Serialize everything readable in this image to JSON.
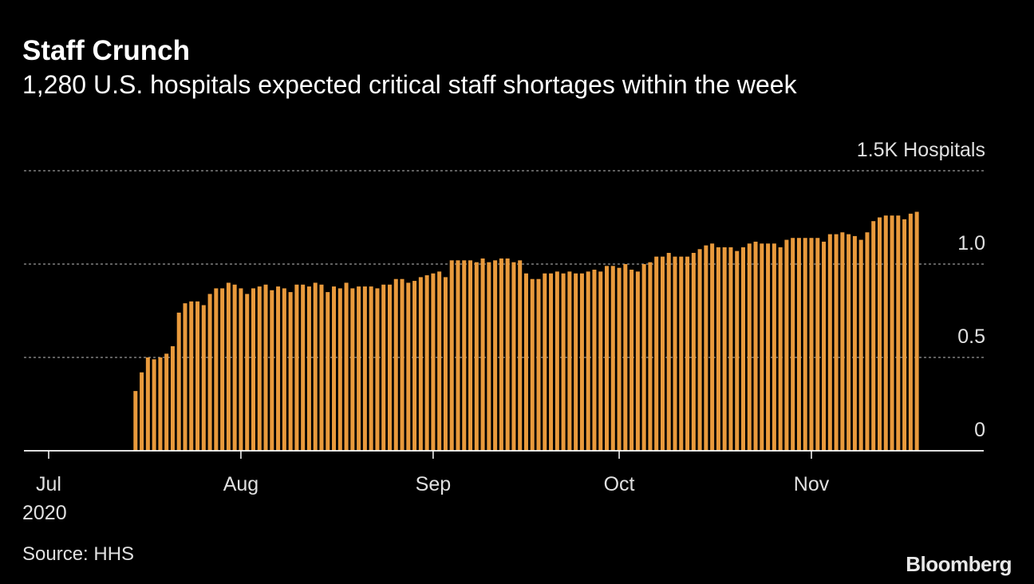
{
  "chart_data": {
    "type": "bar",
    "title": "Staff Crunch",
    "subtitle": "1,280 U.S. hospitals expected critical staff shortages within the week",
    "source": "Source: HHS",
    "brand": "Bloomberg",
    "x_sublabel": "2020",
    "color": "#e99a3c",
    "grid": true,
    "ylim": [
      0,
      1.5
    ],
    "yticks": [
      0,
      0.5,
      {
        "value": 1,
        "label": "1.0"
      },
      {
        "value": 1.5,
        "label": "1.5K Hospitals"
      }
    ],
    "categories": [
      "Jul",
      null,
      null,
      null,
      null,
      null,
      null,
      null,
      null,
      null,
      null,
      null,
      null,
      null,
      null,
      null,
      null,
      null,
      null,
      null,
      null,
      null,
      null,
      null,
      null,
      null,
      null,
      null,
      null,
      null,
      null,
      "Aug",
      null,
      null,
      null,
      null,
      null,
      null,
      null,
      null,
      null,
      null,
      null,
      null,
      null,
      null,
      null,
      null,
      null,
      null,
      null,
      null,
      null,
      null,
      null,
      null,
      null,
      null,
      null,
      null,
      null,
      null,
      "Sep",
      null,
      null,
      null,
      null,
      null,
      null,
      null,
      null,
      null,
      null,
      null,
      null,
      null,
      null,
      null,
      null,
      null,
      null,
      null,
      null,
      null,
      null,
      null,
      null,
      null,
      null,
      null,
      null,
      null,
      "Oct",
      null,
      null,
      null,
      null,
      null,
      null,
      null,
      null,
      null,
      null,
      null,
      null,
      null,
      null,
      null,
      null,
      null,
      null,
      null,
      null,
      null,
      null,
      null,
      null,
      null,
      null,
      null,
      null,
      null,
      null,
      "Nov",
      null,
      null,
      null,
      null,
      null,
      null,
      null,
      null,
      null,
      null,
      null,
      null,
      null,
      null,
      null,
      null,
      null
    ],
    "values": [
      0.002,
      0.002,
      0.002,
      0.002,
      0.002,
      0.002,
      0.002,
      0.002,
      0.002,
      0.002,
      0.002,
      0.002,
      0.002,
      0.002,
      0.32,
      0.42,
      0.5,
      0.49,
      0.5,
      0.52,
      0.56,
      0.74,
      0.79,
      0.8,
      0.8,
      0.78,
      0.84,
      0.87,
      0.87,
      0.9,
      0.89,
      0.87,
      0.84,
      0.87,
      0.88,
      0.89,
      0.86,
      0.88,
      0.87,
      0.85,
      0.89,
      0.89,
      0.88,
      0.9,
      0.89,
      0.85,
      0.88,
      0.87,
      0.9,
      0.87,
      0.88,
      0.88,
      0.88,
      0.87,
      0.89,
      0.89,
      0.92,
      0.92,
      0.9,
      0.91,
      0.93,
      0.94,
      0.95,
      0.96,
      0.93,
      1.02,
      1.02,
      1.02,
      1.02,
      1.01,
      1.03,
      1.01,
      1.02,
      1.03,
      1.03,
      1.01,
      1.02,
      0.95,
      0.92,
      0.92,
      0.95,
      0.95,
      0.96,
      0.95,
      0.96,
      0.95,
      0.95,
      0.96,
      0.97,
      0.96,
      0.99,
      0.99,
      0.98,
      1.0,
      0.97,
      0.96,
      1.0,
      1.01,
      1.04,
      1.04,
      1.06,
      1.04,
      1.04,
      1.04,
      1.06,
      1.08,
      1.1,
      1.11,
      1.09,
      1.09,
      1.09,
      1.07,
      1.09,
      1.11,
      1.12,
      1.11,
      1.11,
      1.11,
      1.09,
      1.13,
      1.14,
      1.14,
      1.14,
      1.14,
      1.14,
      1.12,
      1.16,
      1.16,
      1.17,
      1.16,
      1.15,
      1.13,
      1.17,
      1.23,
      1.25,
      1.26,
      1.26,
      1.26,
      1.24,
      1.27,
      1.28
    ]
  }
}
